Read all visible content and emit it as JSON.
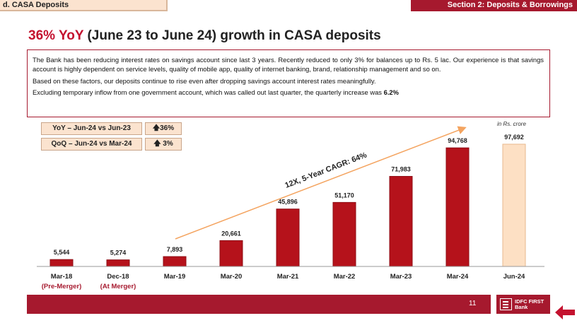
{
  "header": {
    "section_tag": "d. CASA Deposits",
    "section_title": "Section 2:  Deposits & Borrowings"
  },
  "title": {
    "accent": "36% YoY",
    "rest": " (June 23 to June 24) growth in CASA deposits"
  },
  "info": {
    "para1": "The Bank has been reducing interest rates on savings account since last 3 years. Recently reduced to only 3% for balances up to Rs. 5 lac. Our experience is that savings account is highly dependent on service levels, quality of mobile app, quality of internet banking, brand, relationship management and so on.",
    "para2": "Based on these factors, our deposits continue to rise even after dropping savings account interest rates meaningfully.",
    "para3_prefix": "Excluding temporary inflow from one government account, which was called out last quarter, the quarterly increase was ",
    "para3_bold": "6.2%"
  },
  "growth": [
    {
      "label": "YoY – Jun-24 vs Jun-23",
      "value": "36%",
      "icon": "up-arrow-icon"
    },
    {
      "label": "QoQ – Jun-24 vs Mar-24",
      "value": "3%",
      "icon": "up-arrow-icon"
    }
  ],
  "unit_note": "in Rs. crore",
  "chart_data": {
    "type": "bar",
    "categories": [
      "Mar-18",
      "Dec-18",
      "Mar-19",
      "Mar-20",
      "Mar-21",
      "Mar-22",
      "Mar-23",
      "Mar-24",
      "Jun-24"
    ],
    "sub_labels": [
      "(Pre-Merger)",
      "(At Merger)",
      "",
      "",
      "",
      "",
      "",
      "",
      ""
    ],
    "values": [
      5544,
      5274,
      7893,
      20661,
      45896,
      51170,
      71983,
      94768,
      97692
    ],
    "value_labels": [
      "5,544",
      "5,274",
      "7,893",
      "20,661",
      "45,896",
      "51,170",
      "71,983",
      "94,768",
      "97,692"
    ],
    "highlight_index": 8,
    "annotation": "12X, 5-Year CAGR: 64%",
    "colors": {
      "bar": "#b5121b",
      "highlight": "#fde0c4",
      "highlight_border": "#e8b98e",
      "arrow": "#f4a460"
    }
  },
  "footer": {
    "page_number": "11",
    "logo_line1": "IDFC FIRST",
    "logo_line2": "Bank"
  }
}
